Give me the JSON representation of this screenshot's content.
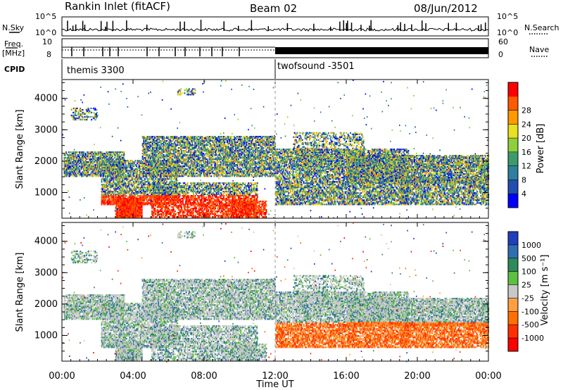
{
  "header": {
    "station": "Rankin Inlet (fitACF)",
    "beam": "Beam 02",
    "date": "08/Jun/2012"
  },
  "status_panels": {
    "nsky_label": "N.Sky",
    "nsky_ticks": [
      "10^5",
      "10^0"
    ],
    "nsearch_label": "N.Search",
    "nsearch_ticks": [
      "10^5",
      "10^0"
    ],
    "freq_label_1": "Freq.",
    "freq_label_2": "[MHz]",
    "freq_ticks": [
      "10",
      "8"
    ],
    "nave_label": "Nave",
    "nave_ticks": [
      "60",
      "0"
    ],
    "cpid_label": "CPID",
    "cpid_segments": [
      {
        "name": "themis 3300"
      },
      {
        "name": "twofsound -3501"
      }
    ]
  },
  "chart_data": [
    {
      "type": "heatmap",
      "name": "power-panel",
      "xlabel": "",
      "ylabel": "Slant Range [km]",
      "x_ticks": [
        "00:00",
        "04:00",
        "08:00",
        "12:00",
        "16:00",
        "20:00",
        "00:00"
      ],
      "x_range_hours": [
        0,
        24
      ],
      "y_ticks": [
        1000,
        2000,
        3000,
        4000
      ],
      "ylim": [
        180,
        4600
      ],
      "colorbar": {
        "label": "Power [dB]",
        "ticks": [
          4,
          8,
          12,
          16,
          20,
          24,
          28
        ],
        "colors": [
          "#0000ff",
          "#1f4fb0",
          "#2f7f9f",
          "#3a9c6e",
          "#8ecf3a",
          "#e8e020",
          "#ff9a00",
          "#ff5a00",
          "#ff0000"
        ]
      }
    },
    {
      "type": "heatmap",
      "name": "velocity-panel",
      "xlabel": "Time UT",
      "ylabel": "Slant Range [km]",
      "x_ticks": [
        "00:00",
        "04:00",
        "08:00",
        "12:00",
        "16:00",
        "20:00",
        "00:00"
      ],
      "x_range_hours": [
        0,
        24
      ],
      "y_ticks": [
        1000,
        2000,
        3000,
        4000
      ],
      "ylim": [
        180,
        4600
      ],
      "colorbar": {
        "label": "Velocity [m s⁻¹]",
        "ticks": [
          1000,
          500,
          100,
          25,
          -25,
          -100,
          -500,
          -1000
        ],
        "colors": [
          "#1f3fbf",
          "#2f6faf",
          "#2e8a5a",
          "#5cc040",
          "#c8c8c8",
          "#ffa040",
          "#ff7000",
          "#ff3000",
          "#ff0000"
        ]
      }
    }
  ]
}
